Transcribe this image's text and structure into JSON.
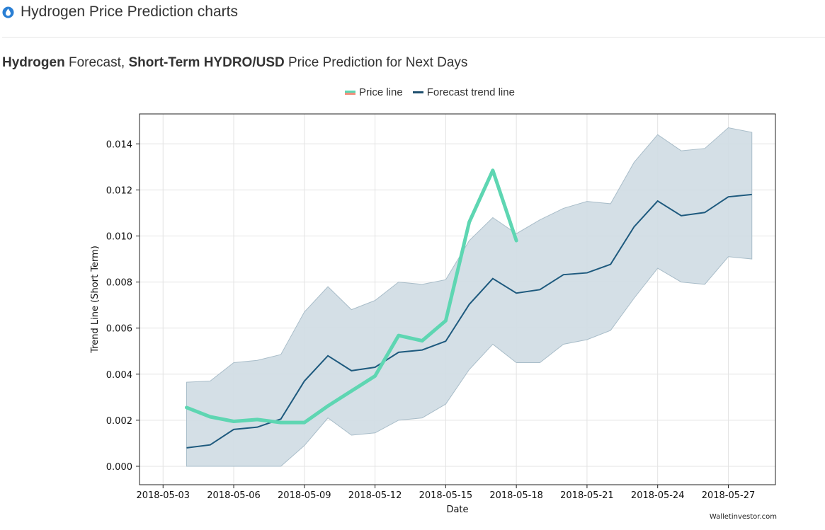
{
  "header": {
    "title": "Hydrogen Price Prediction charts",
    "icon": "water-drop-icon"
  },
  "subtitle": {
    "part1_bold": "Hydrogen",
    "part2": " Forecast, ",
    "part3_bold": "Short-Term HYDRO/USD",
    "part4": " Price Prediction for Next Days"
  },
  "chart_data": {
    "type": "line",
    "xlabel": "Date",
    "ylabel": "Trend Line (Short Term)",
    "watermark": "Walletinvestor.com",
    "ylim": [
      -0.0008,
      0.0153
    ],
    "xlim": [
      "2018-05-02",
      "2018-05-29"
    ],
    "x_ticks": [
      "2018-05-03",
      "2018-05-06",
      "2018-05-09",
      "2018-05-12",
      "2018-05-15",
      "2018-05-18",
      "2018-05-21",
      "2018-05-24",
      "2018-05-27"
    ],
    "y_ticks": [
      "0.000",
      "0.002",
      "0.004",
      "0.006",
      "0.008",
      "0.010",
      "0.012",
      "0.014"
    ],
    "grid": true,
    "legend": [
      "Price line",
      "Forecast trend line"
    ],
    "colors": {
      "price": "#5ed6b2",
      "trend": "#1e5a7e",
      "band": "#cfdce3",
      "band_edge": "#a9bdc9"
    },
    "series": [
      {
        "name": "Price line",
        "x": [
          "2018-05-04",
          "2018-05-05",
          "2018-05-06",
          "2018-05-07",
          "2018-05-08",
          "2018-05-09",
          "2018-05-10",
          "2018-05-11",
          "2018-05-12",
          "2018-05-13",
          "2018-05-14",
          "2018-05-15",
          "2018-05-16",
          "2018-05-17",
          "2018-05-18"
        ],
        "y": [
          0.00255,
          0.00215,
          0.00195,
          0.00203,
          0.0019,
          0.0019,
          0.00262,
          0.00327,
          0.00392,
          0.00568,
          0.00545,
          0.00632,
          0.0106,
          0.01285,
          0.0098
        ]
      },
      {
        "name": "Forecast trend line",
        "x": [
          "2018-05-04",
          "2018-05-05",
          "2018-05-06",
          "2018-05-07",
          "2018-05-08",
          "2018-05-09",
          "2018-05-10",
          "2018-05-11",
          "2018-05-12",
          "2018-05-13",
          "2018-05-14",
          "2018-05-15",
          "2018-05-16",
          "2018-05-17",
          "2018-05-18",
          "2018-05-19",
          "2018-05-20",
          "2018-05-21",
          "2018-05-22",
          "2018-05-23",
          "2018-05-24",
          "2018-05-25",
          "2018-05-26",
          "2018-05-27",
          "2018-05-28"
        ],
        "y": [
          0.0008,
          0.00093,
          0.0016,
          0.0017,
          0.00205,
          0.0037,
          0.0048,
          0.00415,
          0.0043,
          0.00495,
          0.00505,
          0.00543,
          0.00703,
          0.00815,
          0.00752,
          0.00767,
          0.00832,
          0.0084,
          0.00877,
          0.0104,
          0.01152,
          0.01088,
          0.01102,
          0.0117,
          0.0118
        ]
      }
    ],
    "band": {
      "x": [
        "2018-05-04",
        "2018-05-05",
        "2018-05-06",
        "2018-05-07",
        "2018-05-08",
        "2018-05-09",
        "2018-05-10",
        "2018-05-11",
        "2018-05-12",
        "2018-05-13",
        "2018-05-14",
        "2018-05-15",
        "2018-05-16",
        "2018-05-17",
        "2018-05-18",
        "2018-05-19",
        "2018-05-20",
        "2018-05-21",
        "2018-05-22",
        "2018-05-23",
        "2018-05-24",
        "2018-05-25",
        "2018-05-26",
        "2018-05-27",
        "2018-05-28"
      ],
      "upper": [
        0.00365,
        0.0037,
        0.0045,
        0.0046,
        0.00485,
        0.0067,
        0.0078,
        0.0068,
        0.0072,
        0.008,
        0.0079,
        0.0081,
        0.0098,
        0.0108,
        0.0101,
        0.0107,
        0.0112,
        0.0115,
        0.0114,
        0.0132,
        0.0144,
        0.0137,
        0.0138,
        0.0147,
        0.0145
      ],
      "lower": [
        0.0,
        0.0,
        0.0,
        0.0,
        0.0,
        0.0009,
        0.0021,
        0.00135,
        0.00145,
        0.002,
        0.0021,
        0.0027,
        0.0042,
        0.0053,
        0.0045,
        0.0045,
        0.0053,
        0.0055,
        0.0059,
        0.0073,
        0.0086,
        0.008,
        0.0079,
        0.0091,
        0.009
      ]
    }
  }
}
